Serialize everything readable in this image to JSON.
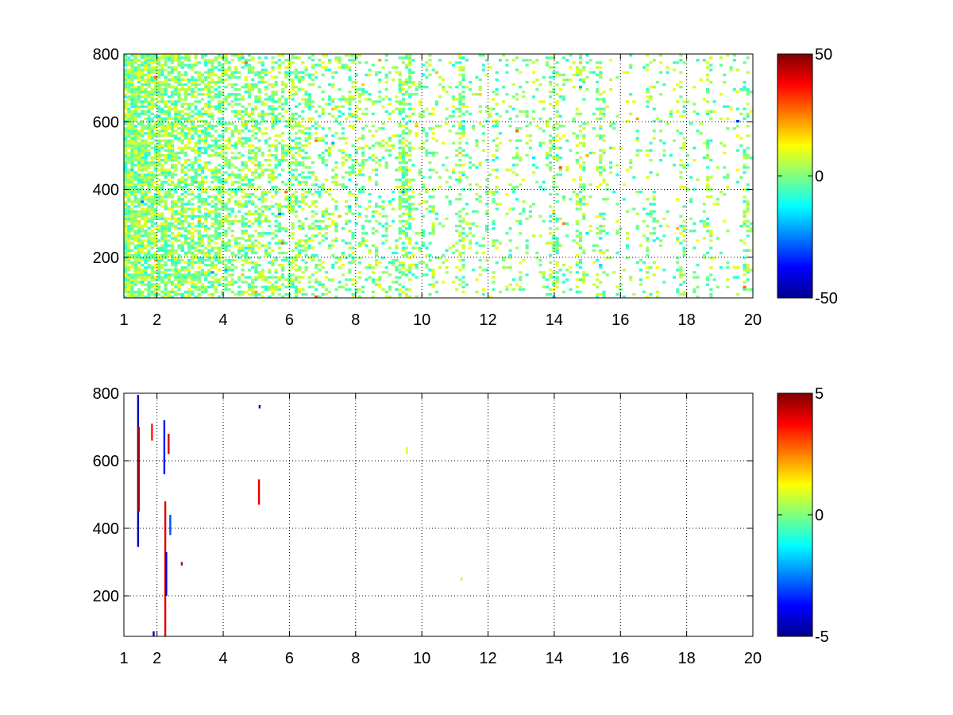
{
  "chart_data": [
    {
      "type": "heatmap",
      "title": "",
      "xlabel": "",
      "ylabel": "",
      "xlim": [
        1,
        20
      ],
      "ylim": [
        80,
        800
      ],
      "xticks": [
        1,
        2,
        4,
        6,
        8,
        10,
        12,
        14,
        16,
        18,
        20
      ],
      "xtick_labels": [
        "1",
        "2",
        "4",
        "6",
        "8",
        "10",
        "12",
        "14",
        "16",
        "18",
        "20"
      ],
      "yticks": [
        200,
        400,
        600,
        800
      ],
      "ytick_labels": [
        "200",
        "400",
        "600",
        "800"
      ],
      "grid": true,
      "grid_style": "dotted",
      "colormap": "jet",
      "clim": [
        -50,
        50
      ],
      "colorbar_ticks": [
        -50,
        0,
        50
      ],
      "colorbar_labels": [
        "-50",
        "0",
        "50"
      ],
      "background_color": "#ffffff",
      "description_of_values": "sparse cells mostly near 0 (cyan-green-yellow), densest at x 1-6, vertical streaks near x 9.5, 11.2, 14, 14.8, 18.7, 19.8",
      "streak_columns": [
        {
          "x": 1.2,
          "intensity": 0.9
        },
        {
          "x": 1.4,
          "intensity": 0.9
        },
        {
          "x": 1.8,
          "intensity": 0.85
        },
        {
          "x": 2.1,
          "intensity": 0.9
        },
        {
          "x": 2.3,
          "intensity": 0.8
        },
        {
          "x": 2.7,
          "intensity": 0.8
        },
        {
          "x": 3.2,
          "intensity": 0.75
        },
        {
          "x": 3.6,
          "intensity": 0.7
        },
        {
          "x": 4.0,
          "intensity": 0.7
        },
        {
          "x": 4.5,
          "intensity": 0.6
        },
        {
          "x": 5.0,
          "intensity": 0.6
        },
        {
          "x": 5.5,
          "intensity": 0.55
        },
        {
          "x": 6.1,
          "intensity": 0.55
        },
        {
          "x": 6.6,
          "intensity": 0.45
        },
        {
          "x": 7.2,
          "intensity": 0.35
        },
        {
          "x": 7.9,
          "intensity": 0.3
        },
        {
          "x": 8.5,
          "intensity": 0.25
        },
        {
          "x": 9.4,
          "intensity": 0.6
        },
        {
          "x": 9.6,
          "intensity": 0.6
        },
        {
          "x": 10.3,
          "intensity": 0.3
        },
        {
          "x": 11.2,
          "intensity": 0.55
        },
        {
          "x": 12.2,
          "intensity": 0.3
        },
        {
          "x": 12.9,
          "intensity": 0.3
        },
        {
          "x": 14.0,
          "intensity": 0.45
        },
        {
          "x": 14.8,
          "intensity": 0.45
        },
        {
          "x": 15.4,
          "intensity": 0.3
        },
        {
          "x": 16.9,
          "intensity": 0.25
        },
        {
          "x": 17.9,
          "intensity": 0.35
        },
        {
          "x": 18.7,
          "intensity": 0.4
        },
        {
          "x": 19.8,
          "intensity": 0.4
        }
      ]
    },
    {
      "type": "heatmap",
      "title": "",
      "xlabel": "",
      "ylabel": "",
      "xlim": [
        1,
        20
      ],
      "ylim": [
        80,
        800
      ],
      "xticks": [
        1,
        2,
        4,
        6,
        8,
        10,
        12,
        14,
        16,
        18,
        20
      ],
      "xtick_labels": [
        "1",
        "2",
        "4",
        "6",
        "8",
        "10",
        "12",
        "14",
        "16",
        "18",
        "20"
      ],
      "yticks": [
        200,
        400,
        600,
        800
      ],
      "ytick_labels": [
        "200",
        "400",
        "600",
        "800"
      ],
      "grid": true,
      "grid_style": "dotted",
      "colormap": "jet",
      "clim": [
        -5,
        5
      ],
      "colorbar_ticks": [
        -5,
        0,
        5
      ],
      "colorbar_labels": [
        "-5",
        "0",
        "5"
      ],
      "background_color": "#ffffff",
      "features": [
        {
          "x": 1.43,
          "y_from": 345,
          "y_to": 795,
          "value": -4.5
        },
        {
          "x": 1.45,
          "y_from": 450,
          "y_to": 700,
          "value": 4.5
        },
        {
          "x": 1.85,
          "y_from": 660,
          "y_to": 710,
          "value": 3.5
        },
        {
          "x": 1.9,
          "y_from": 80,
          "y_to": 95,
          "value": -4
        },
        {
          "x": 2.22,
          "y_from": 560,
          "y_to": 720,
          "value": -3.5
        },
        {
          "x": 2.25,
          "y_from": 80,
          "y_to": 480,
          "value": 4
        },
        {
          "x": 2.28,
          "y_from": 200,
          "y_to": 330,
          "value": -4
        },
        {
          "x": 2.35,
          "y_from": 620,
          "y_to": 680,
          "value": 4.2
        },
        {
          "x": 2.4,
          "y_from": 380,
          "y_to": 440,
          "value": -3
        },
        {
          "x": 2.75,
          "y_from": 290,
          "y_to": 300,
          "value": 4.5
        },
        {
          "x": 5.08,
          "y_from": 470,
          "y_to": 545,
          "value": 4
        },
        {
          "x": 5.1,
          "y_from": 755,
          "y_to": 765,
          "value": -4.8
        },
        {
          "x": 9.55,
          "y_from": 620,
          "y_to": 640,
          "value": 0.8
        },
        {
          "x": 11.2,
          "y_from": 245,
          "y_to": 255,
          "value": 0.6
        }
      ]
    }
  ]
}
